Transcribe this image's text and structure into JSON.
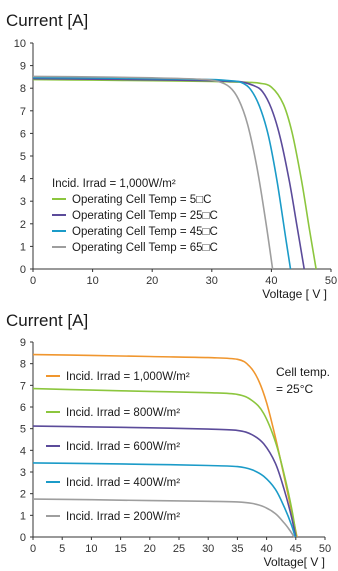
{
  "chart_data": [
    {
      "type": "line",
      "title": "Current [A]",
      "xlabel": "Voltage [ V ]",
      "xlim": [
        0,
        50
      ],
      "ylim": [
        0,
        10
      ],
      "xticks": [
        "0",
        "10",
        "20",
        "30",
        "40",
        "50"
      ],
      "yticks": [
        "0",
        "1",
        "2",
        "3",
        "4",
        "5",
        "6",
        "7",
        "8",
        "9",
        "10"
      ],
      "legend_title": "Incid. Irrad = 1,000W/m²",
      "legend_position": "bottom-left",
      "series": [
        {
          "name": "Operating Cell Temp = 5□C",
          "color": "#8cc63e",
          "x": [
            0,
            10,
            20,
            30,
            33,
            36,
            38,
            40,
            42,
            43.5,
            45,
            46.3,
            47.5
          ],
          "y": [
            8.38,
            8.36,
            8.33,
            8.3,
            8.28,
            8.26,
            8.22,
            8.05,
            7.3,
            6.0,
            4.0,
            1.9,
            0
          ]
        },
        {
          "name": "Operating Cell Temp = 25□C",
          "color": "#5b4b9a",
          "x": [
            0,
            10,
            20,
            30,
            33,
            35,
            37,
            38.5,
            40,
            41.5,
            43,
            44.3,
            45.5
          ],
          "y": [
            8.42,
            8.4,
            8.37,
            8.33,
            8.3,
            8.28,
            8.12,
            7.85,
            7.1,
            5.8,
            3.9,
            1.9,
            0
          ]
        },
        {
          "name": "Operating Cell Temp = 45□C",
          "color": "#1b9bc8",
          "x": [
            0,
            10,
            20,
            30,
            33,
            35,
            36.5,
            38,
            39.5,
            41,
            42.5,
            43.2
          ],
          "y": [
            8.47,
            8.45,
            8.42,
            8.38,
            8.33,
            8.25,
            7.95,
            7.2,
            5.9,
            3.8,
            1.2,
            0
          ]
        },
        {
          "name": "Operating Cell Temp = 65□C",
          "color": "#9e9e9e",
          "x": [
            0,
            10,
            20,
            28,
            31,
            33,
            34.5,
            36,
            37.5,
            39,
            40.2
          ],
          "y": [
            8.52,
            8.5,
            8.46,
            8.4,
            8.3,
            8.05,
            7.5,
            6.4,
            4.6,
            2.2,
            0
          ]
        }
      ]
    },
    {
      "type": "line",
      "title": "Current [A]",
      "xlabel": "Voltage[ V ]",
      "xlim": [
        0,
        50
      ],
      "ylim": [
        0,
        9
      ],
      "xticks": [
        "0",
        "5",
        "10",
        "15",
        "20",
        "25",
        "30",
        "35",
        "40",
        "45",
        "50"
      ],
      "yticks": [
        "0",
        "1",
        "2",
        "3",
        "4",
        "5",
        "6",
        "7",
        "8",
        "9"
      ],
      "annotation": [
        "Cell temp.",
        "= 25°C"
      ],
      "series": [
        {
          "name": "Incid. Irrad = 1,000W/m²",
          "color": "#f0962e",
          "x": [
            0,
            10,
            20,
            30,
            35,
            37,
            38.5,
            40,
            41.5,
            43,
            44.2,
            45.2
          ],
          "y": [
            8.42,
            8.38,
            8.33,
            8.28,
            8.2,
            7.9,
            7.3,
            6.2,
            4.6,
            2.8,
            1.3,
            0
          ]
        },
        {
          "name": "Incid. Irrad = 800W/m²",
          "color": "#8cc63e",
          "x": [
            0,
            10,
            20,
            30,
            35,
            37.5,
            39.5,
            41.5,
            43,
            44.3,
            45.1
          ],
          "y": [
            6.85,
            6.78,
            6.72,
            6.66,
            6.58,
            6.3,
            5.7,
            4.4,
            2.9,
            1.3,
            0
          ]
        },
        {
          "name": "Incid. Irrad = 600W/m²",
          "color": "#5b4b9a",
          "x": [
            0,
            10,
            20,
            30,
            35,
            37.5,
            39.5,
            41.5,
            43,
            44.2,
            45
          ],
          "y": [
            5.12,
            5.08,
            5.04,
            4.98,
            4.92,
            4.72,
            4.3,
            3.4,
            2.2,
            1.0,
            0
          ]
        },
        {
          "name": "Incid. Irrad = 400W/m²",
          "color": "#1b9bc8",
          "x": [
            0,
            10,
            20,
            30,
            35,
            37.5,
            39.5,
            41.5,
            43,
            44.2,
            44.9
          ],
          "y": [
            3.42,
            3.39,
            3.35,
            3.3,
            3.25,
            3.1,
            2.8,
            2.2,
            1.4,
            0.6,
            0
          ]
        },
        {
          "name": "Incid. Irrad = 200W/m²",
          "color": "#9e9e9e",
          "x": [
            0,
            10,
            20,
            30,
            35,
            37.5,
            39.5,
            41.5,
            43,
            44,
            44.7
          ],
          "y": [
            1.75,
            1.72,
            1.68,
            1.65,
            1.62,
            1.55,
            1.4,
            1.08,
            0.65,
            0.3,
            0
          ]
        }
      ]
    }
  ]
}
